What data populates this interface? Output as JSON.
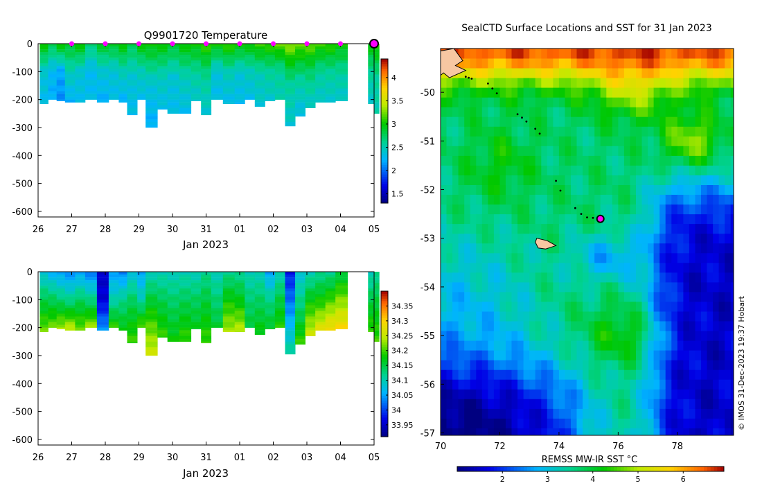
{
  "chart_data": [
    {
      "type": "heatmap",
      "id": "temp",
      "title": "Q9901720  Temperature",
      "xlabel": "Jan 2023",
      "ylabel": "",
      "x_tick_labels": [
        "26",
        "27",
        "28",
        "29",
        "30",
        "31",
        "01",
        "02",
        "03",
        "04",
        "05"
      ],
      "y_tick_labels": [
        "0",
        "-100",
        "-200",
        "-300",
        "-400",
        "-500",
        "-600"
      ],
      "ylim": [
        -620,
        0
      ],
      "colorbar": {
        "min": 1.3,
        "max": 4.4,
        "ticks": [
          "1.5",
          "2",
          "2.5",
          "3",
          "3.5",
          "4"
        ],
        "tick_values": [
          1.5,
          2,
          2.5,
          3,
          3.5,
          4
        ]
      },
      "profile_markers_x_days": [
        1,
        2,
        3,
        4,
        5,
        6,
        7,
        8,
        9,
        10
      ],
      "current_marker_x_days": 10,
      "profiles": [
        {
          "x": 0.05,
          "depth": 215,
          "top": 3.0,
          "mid": 2.4,
          "bot": 2.3
        },
        {
          "x": 0.3,
          "depth": 200,
          "top": 2.8,
          "mid": 2.3,
          "bot": 2.2
        },
        {
          "x": 0.55,
          "depth": 205,
          "top": 3.0,
          "mid": 2.2,
          "bot": 2.1
        },
        {
          "x": 0.8,
          "depth": 210,
          "top": 2.9,
          "mid": 2.5,
          "bot": 2.2
        },
        {
          "x": 1.1,
          "depth": 210,
          "top": 3.0,
          "mid": 2.4,
          "bot": 2.3
        },
        {
          "x": 1.4,
          "depth": 200,
          "top": 2.7,
          "mid": 2.3,
          "bot": 2.3
        },
        {
          "x": 1.75,
          "depth": 210,
          "top": 2.9,
          "mid": 2.4,
          "bot": 2.2
        },
        {
          "x": 2.1,
          "depth": 200,
          "top": 2.9,
          "mid": 2.4,
          "bot": 2.3
        },
        {
          "x": 2.4,
          "depth": 210,
          "top": 3.0,
          "mid": 2.5,
          "bot": 2.2
        },
        {
          "x": 2.65,
          "depth": 255,
          "top": 2.8,
          "mid": 2.4,
          "bot": 2.3
        },
        {
          "x": 2.95,
          "depth": 200,
          "top": 3.0,
          "mid": 2.5,
          "bot": 2.3
        },
        {
          "x": 3.2,
          "depth": 300,
          "top": 3.0,
          "mid": 2.4,
          "bot": 2.2
        },
        {
          "x": 3.55,
          "depth": 235,
          "top": 3.0,
          "mid": 2.5,
          "bot": 2.3
        },
        {
          "x": 3.85,
          "depth": 250,
          "top": 2.9,
          "mid": 2.4,
          "bot": 2.3
        },
        {
          "x": 4.2,
          "depth": 250,
          "top": 3.0,
          "mid": 2.5,
          "bot": 2.3
        },
        {
          "x": 4.55,
          "depth": 205,
          "top": 3.0,
          "mid": 2.6,
          "bot": 2.4
        },
        {
          "x": 4.85,
          "depth": 255,
          "top": 3.1,
          "mid": 2.6,
          "bot": 2.4
        },
        {
          "x": 5.15,
          "depth": 200,
          "top": 3.0,
          "mid": 2.4,
          "bot": 2.3
        },
        {
          "x": 5.5,
          "depth": 215,
          "top": 3.1,
          "mid": 2.5,
          "bot": 2.3
        },
        {
          "x": 5.85,
          "depth": 215,
          "top": 3.0,
          "mid": 2.4,
          "bot": 2.3
        },
        {
          "x": 6.15,
          "depth": 200,
          "top": 3.0,
          "mid": 2.5,
          "bot": 2.3
        },
        {
          "x": 6.45,
          "depth": 225,
          "top": 3.1,
          "mid": 2.5,
          "bot": 2.4
        },
        {
          "x": 6.75,
          "depth": 205,
          "top": 3.1,
          "mid": 2.6,
          "bot": 2.4
        },
        {
          "x": 7.05,
          "depth": 200,
          "top": 3.2,
          "mid": 2.6,
          "bot": 2.5
        },
        {
          "x": 7.35,
          "depth": 295,
          "top": 3.3,
          "mid": 2.6,
          "bot": 2.4
        },
        {
          "x": 7.65,
          "depth": 260,
          "top": 3.2,
          "mid": 2.6,
          "bot": 2.3
        },
        {
          "x": 7.95,
          "depth": 230,
          "top": 3.2,
          "mid": 2.7,
          "bot": 2.4
        },
        {
          "x": 8.25,
          "depth": 210,
          "top": 3.1,
          "mid": 2.6,
          "bot": 2.4
        },
        {
          "x": 8.55,
          "depth": 210,
          "top": 3.1,
          "mid": 2.6,
          "bot": 2.4
        },
        {
          "x": 8.85,
          "depth": 205,
          "top": 3.0,
          "mid": 2.6,
          "bot": 2.4
        },
        {
          "x": 9.82,
          "depth": 215,
          "top": 3.0,
          "mid": 2.6,
          "bot": 2.4
        },
        {
          "x": 10.0,
          "depth": 250,
          "top": 3.1,
          "mid": 2.6,
          "bot": 2.5
        }
      ]
    },
    {
      "type": "heatmap",
      "id": "salt",
      "title": "",
      "xlabel": "Jan 2023",
      "ylabel": "",
      "x_tick_labels": [
        "26",
        "27",
        "28",
        "29",
        "30",
        "31",
        "01",
        "02",
        "03",
        "04",
        "05"
      ],
      "y_tick_labels": [
        "0",
        "-100",
        "-200",
        "-300",
        "-400",
        "-500",
        "-600"
      ],
      "ylim": [
        -620,
        0
      ],
      "colorbar": {
        "min": 33.91,
        "max": 34.4,
        "ticks": [
          "33.95",
          "34",
          "34.05",
          "34.1",
          "34.15",
          "34.2",
          "34.25",
          "34.3",
          "34.35"
        ],
        "tick_values": [
          33.95,
          34.0,
          34.05,
          34.1,
          34.15,
          34.2,
          34.25,
          34.3,
          34.35
        ]
      },
      "profiles": [
        {
          "x": 0.05,
          "depth": 215,
          "top": 34.08,
          "mid": 34.15,
          "bot": 34.22
        },
        {
          "x": 0.3,
          "depth": 200,
          "top": 34.06,
          "mid": 34.14,
          "bot": 34.22
        },
        {
          "x": 0.55,
          "depth": 205,
          "top": 34.05,
          "mid": 34.13,
          "bot": 34.24
        },
        {
          "x": 0.8,
          "depth": 210,
          "top": 34.04,
          "mid": 34.12,
          "bot": 34.26
        },
        {
          "x": 1.1,
          "depth": 210,
          "top": 34.05,
          "mid": 34.14,
          "bot": 34.22
        },
        {
          "x": 1.4,
          "depth": 200,
          "top": 34.03,
          "mid": 34.12,
          "bot": 34.24
        },
        {
          "x": 1.75,
          "depth": 210,
          "top": 33.95,
          "mid": 33.96,
          "bot": 34.05
        },
        {
          "x": 2.1,
          "depth": 200,
          "top": 34.05,
          "mid": 34.1,
          "bot": 34.2
        },
        {
          "x": 2.4,
          "depth": 210,
          "top": 34.03,
          "mid": 34.12,
          "bot": 34.18
        },
        {
          "x": 2.65,
          "depth": 255,
          "top": 34.08,
          "mid": 34.15,
          "bot": 34.2
        },
        {
          "x": 2.95,
          "depth": 200,
          "top": 34.05,
          "mid": 34.1,
          "bot": 34.22
        },
        {
          "x": 3.2,
          "depth": 300,
          "top": 34.1,
          "mid": 34.18,
          "bot": 34.26
        },
        {
          "x": 3.55,
          "depth": 235,
          "top": 34.1,
          "mid": 34.15,
          "bot": 34.2
        },
        {
          "x": 3.85,
          "depth": 250,
          "top": 34.1,
          "mid": 34.14,
          "bot": 34.18
        },
        {
          "x": 4.2,
          "depth": 250,
          "top": 34.1,
          "mid": 34.15,
          "bot": 34.2
        },
        {
          "x": 4.55,
          "depth": 205,
          "top": 34.1,
          "mid": 34.14,
          "bot": 34.17
        },
        {
          "x": 4.85,
          "depth": 255,
          "top": 34.12,
          "mid": 34.16,
          "bot": 34.2
        },
        {
          "x": 5.15,
          "depth": 200,
          "top": 34.1,
          "mid": 34.13,
          "bot": 34.16
        },
        {
          "x": 5.5,
          "depth": 215,
          "top": 34.12,
          "mid": 34.18,
          "bot": 34.24
        },
        {
          "x": 5.85,
          "depth": 215,
          "top": 34.12,
          "mid": 34.17,
          "bot": 34.25
        },
        {
          "x": 6.15,
          "depth": 200,
          "top": 34.1,
          "mid": 34.13,
          "bot": 34.16
        },
        {
          "x": 6.45,
          "depth": 225,
          "top": 34.1,
          "mid": 34.14,
          "bot": 34.18
        },
        {
          "x": 6.75,
          "depth": 205,
          "top": 34.05,
          "mid": 34.12,
          "bot": 34.17
        },
        {
          "x": 7.05,
          "depth": 200,
          "top": 34.1,
          "mid": 34.15,
          "bot": 34.19
        },
        {
          "x": 7.35,
          "depth": 295,
          "top": 33.98,
          "mid": 34.04,
          "bot": 34.12
        },
        {
          "x": 7.65,
          "depth": 260,
          "top": 34.08,
          "mid": 34.13,
          "bot": 34.2
        },
        {
          "x": 7.95,
          "depth": 230,
          "top": 34.1,
          "mid": 34.18,
          "bot": 34.26
        },
        {
          "x": 8.25,
          "depth": 210,
          "top": 34.12,
          "mid": 34.18,
          "bot": 34.28
        },
        {
          "x": 8.55,
          "depth": 210,
          "top": 34.12,
          "mid": 34.2,
          "bot": 34.3
        },
        {
          "x": 8.85,
          "depth": 205,
          "top": 34.15,
          "mid": 34.22,
          "bot": 34.3
        },
        {
          "x": 9.82,
          "depth": 215,
          "top": 34.1,
          "mid": 34.15,
          "bot": 34.2
        },
        {
          "x": 10.0,
          "depth": 250,
          "top": 34.12,
          "mid": 34.16,
          "bot": 34.2
        }
      ]
    },
    {
      "type": "heatmap",
      "id": "sst",
      "title": "SealCTD Surface Locations and SST for 31 Jan 2023",
      "xlabel": "",
      "colorbar_label": "REMSS MW-IR SST °C",
      "x_tick_labels": [
        "70",
        "72",
        "74",
        "76",
        "78"
      ],
      "x_tick_values": [
        70,
        72,
        74,
        76,
        78
      ],
      "y_tick_labels": [
        "-50",
        "-51",
        "-52",
        "-53",
        "-54",
        "-55",
        "-56",
        "-57"
      ],
      "y_tick_values": [
        -50,
        -51,
        -52,
        -53,
        -54,
        -55,
        -56,
        -57
      ],
      "xlim": [
        70,
        79.9
      ],
      "ylim": [
        -57.05,
        -49.1
      ],
      "colorbar": {
        "min": 1.0,
        "max": 6.9,
        "ticks": [
          "2",
          "3",
          "4",
          "5",
          "6"
        ],
        "tick_values": [
          2,
          3,
          4,
          5,
          6
        ]
      },
      "track_points": [
        {
          "lon": 70.85,
          "lat": -49.68
        },
        {
          "lon": 70.95,
          "lat": -49.7
        },
        {
          "lon": 71.05,
          "lat": -49.72
        },
        {
          "lon": 71.6,
          "lat": -49.82
        },
        {
          "lon": 71.75,
          "lat": -49.92
        },
        {
          "lon": 71.9,
          "lat": -50.02
        },
        {
          "lon": 72.6,
          "lat": -50.45
        },
        {
          "lon": 72.75,
          "lat": -50.52
        },
        {
          "lon": 72.9,
          "lat": -50.6
        },
        {
          "lon": 73.2,
          "lat": -50.75
        },
        {
          "lon": 73.35,
          "lat": -50.85
        },
        {
          "lon": 73.9,
          "lat": -51.82
        },
        {
          "lon": 74.05,
          "lat": -52.02
        },
        {
          "lon": 74.55,
          "lat": -52.38
        },
        {
          "lon": 74.75,
          "lat": -52.5
        },
        {
          "lon": 74.95,
          "lat": -52.57
        },
        {
          "lon": 75.15,
          "lat": -52.58
        }
      ],
      "current_location": {
        "lon": 75.4,
        "lat": -52.6
      },
      "islands": [
        {
          "name": "kerguelen",
          "points": [
            [
              70.0,
              -49.15
            ],
            [
              70.45,
              -49.1
            ],
            [
              70.75,
              -49.35
            ],
            [
              70.5,
              -49.45
            ],
            [
              70.85,
              -49.55
            ],
            [
              70.3,
              -49.7
            ],
            [
              70.1,
              -49.6
            ],
            [
              70.0,
              -49.65
            ]
          ]
        },
        {
          "name": "heard",
          "points": [
            [
              73.25,
              -53.0
            ],
            [
              73.6,
              -53.05
            ],
            [
              73.9,
              -53.15
            ],
            [
              73.55,
              -53.22
            ],
            [
              73.3,
              -53.2
            ],
            [
              73.2,
              -53.08
            ]
          ]
        }
      ],
      "watermark": "© IMOS 31-Dec-2023 19:37 Hobart"
    }
  ]
}
